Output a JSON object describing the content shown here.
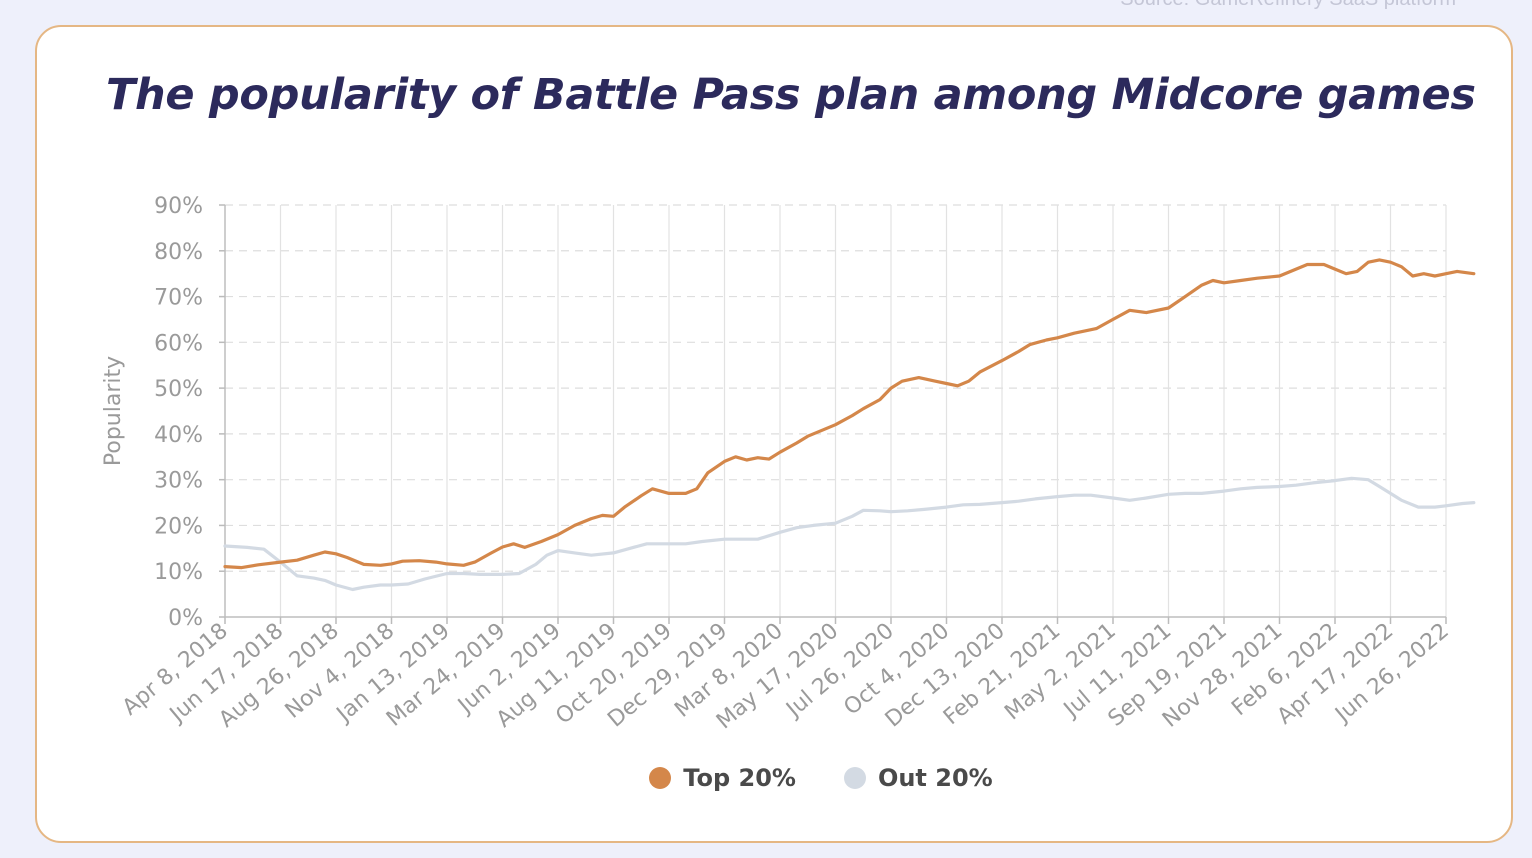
{
  "source_note": "Source: GameRefinery SaaS platform",
  "chart_data": {
    "type": "line",
    "title": "The popularity of Battle Pass plan among Midcore games",
    "ylabel": "Popularity",
    "xlabel": "",
    "ylim": [
      0,
      90
    ],
    "yticks": [
      "0%",
      "10%",
      "20%",
      "30%",
      "40%",
      "50%",
      "60%",
      "70%",
      "80%",
      "90%"
    ],
    "categories": [
      "Apr 8, 2018",
      "Jun 17, 2018",
      "Aug 26, 2018",
      "Nov 4, 2018",
      "Jan 13, 2019",
      "Mar 24, 2019",
      "Jun 2, 2019",
      "Aug 11, 2019",
      "Oct 20, 2019",
      "Dec 29, 2019",
      "Mar 8, 2020",
      "May 17, 2020",
      "Jul 26, 2020",
      "Oct 4, 2020",
      "Dec 13, 2020",
      "Feb 21, 2021",
      "May 2, 2021",
      "Jul 11, 2021",
      "Sep 19, 2021",
      "Nov 28, 2021",
      "Feb 6, 2022",
      "Apr 17, 2022",
      "Jun 26, 2022"
    ],
    "grid": true,
    "legend_position": "bottom",
    "series": [
      {
        "name": "Top 20%",
        "color": "#d4874a",
        "points": [
          [
            0,
            11
          ],
          [
            0.3,
            10.8
          ],
          [
            0.6,
            11.4
          ],
          [
            1,
            12
          ],
          [
            1.3,
            12.4
          ],
          [
            1.6,
            13.5
          ],
          [
            1.8,
            14.2
          ],
          [
            2,
            13.8
          ],
          [
            2.2,
            13
          ],
          [
            2.5,
            11.5
          ],
          [
            2.8,
            11.3
          ],
          [
            3,
            11.6
          ],
          [
            3.2,
            12.2
          ],
          [
            3.5,
            12.3
          ],
          [
            3.8,
            12
          ],
          [
            4,
            11.6
          ],
          [
            4.3,
            11.3
          ],
          [
            4.5,
            12
          ],
          [
            4.8,
            14
          ],
          [
            5,
            15.3
          ],
          [
            5.2,
            16
          ],
          [
            5.4,
            15.2
          ],
          [
            5.7,
            16.5
          ],
          [
            6,
            18
          ],
          [
            6.3,
            20
          ],
          [
            6.6,
            21.5
          ],
          [
            6.8,
            22.2
          ],
          [
            7,
            22
          ],
          [
            7.2,
            24
          ],
          [
            7.5,
            26.5
          ],
          [
            7.7,
            28
          ],
          [
            8,
            27
          ],
          [
            8.3,
            27
          ],
          [
            8.5,
            28
          ],
          [
            8.7,
            31.5
          ],
          [
            9,
            34
          ],
          [
            9.2,
            35
          ],
          [
            9.4,
            34.3
          ],
          [
            9.6,
            34.8
          ],
          [
            9.8,
            34.5
          ],
          [
            10,
            36
          ],
          [
            10.3,
            38
          ],
          [
            10.5,
            39.5
          ],
          [
            10.8,
            41
          ],
          [
            11,
            42
          ],
          [
            11.3,
            44
          ],
          [
            11.5,
            45.5
          ],
          [
            11.8,
            47.5
          ],
          [
            12,
            50
          ],
          [
            12.2,
            51.5
          ],
          [
            12.5,
            52.3
          ],
          [
            12.8,
            51.5
          ],
          [
            13,
            51
          ],
          [
            13.2,
            50.5
          ],
          [
            13.4,
            51.5
          ],
          [
            13.6,
            53.5
          ],
          [
            14,
            56
          ],
          [
            14.3,
            58
          ],
          [
            14.5,
            59.5
          ],
          [
            14.8,
            60.5
          ],
          [
            15,
            61
          ],
          [
            15.3,
            62
          ],
          [
            15.7,
            63
          ],
          [
            16,
            65
          ],
          [
            16.3,
            67
          ],
          [
            16.6,
            66.5
          ],
          [
            17,
            67.5
          ],
          [
            17.3,
            70
          ],
          [
            17.6,
            72.5
          ],
          [
            17.8,
            73.5
          ],
          [
            18,
            73
          ],
          [
            18.3,
            73.5
          ],
          [
            18.6,
            74
          ],
          [
            19,
            74.5
          ],
          [
            19.3,
            76
          ],
          [
            19.5,
            77
          ],
          [
            19.8,
            77
          ],
          [
            20,
            76
          ],
          [
            20.2,
            75
          ],
          [
            20.4,
            75.5
          ],
          [
            20.6,
            77.5
          ],
          [
            20.8,
            78
          ],
          [
            21,
            77.5
          ],
          [
            21.2,
            76.5
          ],
          [
            21.4,
            74.5
          ],
          [
            21.6,
            75
          ],
          [
            21.8,
            74.5
          ],
          [
            22,
            75
          ],
          [
            22.2,
            75.5
          ],
          [
            22.5,
            75
          ]
        ]
      },
      {
        "name": "Out 20%",
        "color": "#d3dae3",
        "points": [
          [
            0,
            15.5
          ],
          [
            0.4,
            15.2
          ],
          [
            0.7,
            14.8
          ],
          [
            1,
            12
          ],
          [
            1.3,
            9
          ],
          [
            1.6,
            8.5
          ],
          [
            1.8,
            8
          ],
          [
            2,
            7
          ],
          [
            2.3,
            6
          ],
          [
            2.5,
            6.5
          ],
          [
            2.8,
            7
          ],
          [
            3,
            7
          ],
          [
            3.3,
            7.2
          ],
          [
            3.6,
            8.3
          ],
          [
            4,
            9.5
          ],
          [
            4.3,
            9.5
          ],
          [
            4.6,
            9.3
          ],
          [
            5,
            9.3
          ],
          [
            5.3,
            9.5
          ],
          [
            5.6,
            11.5
          ],
          [
            5.8,
            13.5
          ],
          [
            6,
            14.5
          ],
          [
            6.3,
            14
          ],
          [
            6.6,
            13.5
          ],
          [
            7,
            14
          ],
          [
            7.3,
            15
          ],
          [
            7.6,
            16
          ],
          [
            8,
            16
          ],
          [
            8.3,
            16
          ],
          [
            8.6,
            16.5
          ],
          [
            9,
            17
          ],
          [
            9.3,
            17
          ],
          [
            9.6,
            17
          ],
          [
            10,
            18.5
          ],
          [
            10.3,
            19.5
          ],
          [
            10.6,
            20
          ],
          [
            11,
            20.5
          ],
          [
            11.3,
            22
          ],
          [
            11.5,
            23.3
          ],
          [
            11.8,
            23.2
          ],
          [
            12,
            23
          ],
          [
            12.3,
            23.2
          ],
          [
            12.6,
            23.5
          ],
          [
            13,
            24
          ],
          [
            13.3,
            24.5
          ],
          [
            13.6,
            24.6
          ],
          [
            14,
            25
          ],
          [
            14.3,
            25.3
          ],
          [
            14.6,
            25.8
          ],
          [
            15,
            26.3
          ],
          [
            15.3,
            26.6
          ],
          [
            15.6,
            26.6
          ],
          [
            16,
            26
          ],
          [
            16.3,
            25.5
          ],
          [
            16.6,
            26
          ],
          [
            17,
            26.8
          ],
          [
            17.3,
            27
          ],
          [
            17.6,
            27
          ],
          [
            18,
            27.5
          ],
          [
            18.3,
            28
          ],
          [
            18.6,
            28.3
          ],
          [
            19,
            28.5
          ],
          [
            19.3,
            28.8
          ],
          [
            19.6,
            29.3
          ],
          [
            20,
            29.8
          ],
          [
            20.3,
            30.3
          ],
          [
            20.6,
            30
          ],
          [
            20.8,
            28.5
          ],
          [
            21,
            27
          ],
          [
            21.2,
            25.5
          ],
          [
            21.5,
            24
          ],
          [
            21.8,
            24
          ],
          [
            22,
            24.3
          ],
          [
            22.3,
            24.8
          ],
          [
            22.5,
            25
          ]
        ]
      }
    ]
  }
}
